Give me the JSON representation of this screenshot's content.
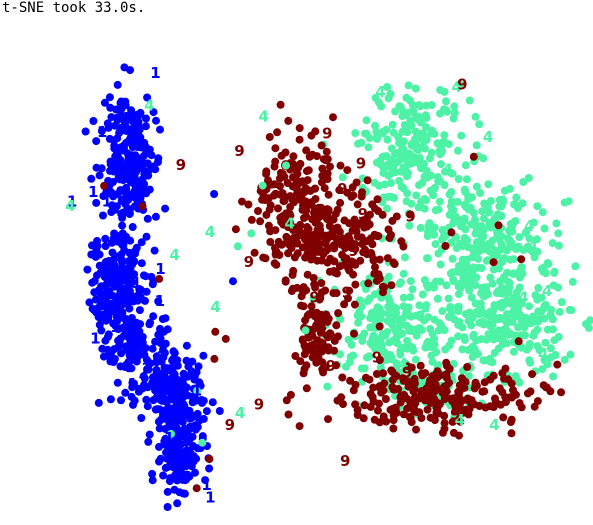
{
  "header": {
    "text": "t-SNE took 33.0s."
  },
  "chart_data": {
    "type": "scatter",
    "title": "",
    "xlabel": "",
    "ylabel": "",
    "grid": false,
    "axes_visible": false,
    "series": [
      {
        "name": "",
        "label_glyph": "1",
        "color": "#0000ff",
        "clusters": [
          {
            "cx": -72,
            "cy": -44,
            "sx": 4.5,
            "sy": 9.5,
            "n": 240
          },
          {
            "cx": -76,
            "cy": -8,
            "sx": 4.5,
            "sy": 8.5,
            "n": 210
          },
          {
            "cx": -70,
            "cy": 11,
            "sx": 5.0,
            "sy": 5.0,
            "n": 120
          },
          {
            "cx": -58,
            "cy": 24,
            "sx": 5.5,
            "sy": 6.0,
            "n": 170
          },
          {
            "cx": -56,
            "cy": 41,
            "sx": 3.5,
            "sy": 6.5,
            "n": 150
          }
        ],
        "text_labels": [
          [
            -63.5,
            -70.1
          ],
          [
            -80.7,
            -52.8
          ],
          [
            -83.6,
            -35.1
          ],
          [
            -79.2,
            -32.3
          ],
          [
            -90.4,
            -32.3
          ],
          [
            -61.9,
            -12.3
          ],
          [
            -69.6,
            -8.2
          ],
          [
            -73.9,
            -13.8
          ],
          [
            -62.1,
            -2.9
          ],
          [
            -78.1,
            1.9
          ],
          [
            -76.4,
            4.7
          ],
          [
            -82.9,
            8.1
          ],
          [
            -72.0,
            9.4
          ],
          [
            -61.6,
            13.6
          ],
          [
            -66.4,
            17.0
          ],
          [
            -67.6,
            20.9
          ],
          [
            -70.9,
            21.6
          ],
          [
            -61.6,
            25.4
          ],
          [
            -50.1,
            23.4
          ],
          [
            -59.1,
            37.4
          ],
          [
            -59.5,
            43.1
          ],
          [
            -47.0,
            51.3
          ],
          [
            -45.8,
            55.0
          ]
        ]
      },
      {
        "name": "",
        "label_glyph": "4",
        "color": "#4df2a6",
        "clusters": [
          {
            "cx": 20,
            "cy": -48,
            "sx": 9,
            "sy": 9,
            "n": 210
          },
          {
            "cx": 40,
            "cy": -22,
            "sx": 11,
            "sy": 9,
            "n": 240
          },
          {
            "cx": 48,
            "cy": 2,
            "sx": 11,
            "sy": 9,
            "n": 260
          },
          {
            "cx": 13,
            "cy": 5,
            "sx": 10,
            "sy": 8,
            "n": 200
          },
          {
            "cx": 25,
            "cy": 24,
            "sx": 6,
            "sy": 4,
            "n": 60
          }
        ],
        "text_labels": [
          [
            -65.5,
            -60.6
          ],
          [
            -91.0,
            -31.0
          ],
          [
            -57.3,
            -16.5
          ],
          [
            -45.9,
            -23.3
          ],
          [
            -44.1,
            -1.2
          ],
          [
            -36.2,
            30.1
          ],
          [
            -28.6,
            -57.3
          ],
          [
            -20.2,
            -25.8
          ],
          [
            9.1,
            -64.6
          ],
          [
            33.7,
            -66.0
          ],
          [
            43.8,
            -51.2
          ],
          [
            30.8,
            -41.7
          ],
          [
            48.3,
            -32.2
          ],
          [
            57.1,
            -25.1
          ],
          [
            58.3,
            -19.0
          ],
          [
            62.9,
            -5.9
          ],
          [
            55.2,
            -3.9
          ],
          [
            49.8,
            6.8
          ],
          [
            61.6,
            12.7
          ],
          [
            16.4,
            15.7
          ],
          [
            45.9,
            33.6
          ],
          [
            34.7,
            32.1
          ],
          [
            12.3,
            2.8
          ]
        ]
      },
      {
        "name": "",
        "label_glyph": "9",
        "color": "#800000",
        "clusters": [
          {
            "cx": -18,
            "cy": -33,
            "sx": 6.5,
            "sy": 10,
            "n": 200
          },
          {
            "cx": -2,
            "cy": -22,
            "sx": 9,
            "sy": 8,
            "n": 190
          },
          {
            "cx": -12,
            "cy": 6,
            "sx": 3.5,
            "sy": 7,
            "n": 90
          },
          {
            "cx": 28,
            "cy": 25,
            "sx": 16,
            "sy": 4.5,
            "n": 230
          }
        ],
        "text_labels": [
          [
            -55.3,
            -43.0
          ],
          [
            -36.4,
            -47.2
          ],
          [
            -8.1,
            -52.3
          ],
          [
            2.8,
            -43.4
          ],
          [
            35.5,
            -66.7
          ],
          [
            -3.2,
            -35.9
          ],
          [
            3.4,
            -28.5
          ],
          [
            18.8,
            -27.9
          ],
          [
            -33.4,
            -14.4
          ],
          [
            0.4,
            -17.7
          ],
          [
            -12.2,
            -3.9
          ],
          [
            -1.8,
            -5.5
          ],
          [
            7.9,
            13.8
          ],
          [
            17.7,
            18.1
          ],
          [
            -30.1,
            27.6
          ],
          [
            -39.5,
            33.6
          ],
          [
            -2.3,
            44.2
          ],
          [
            33.2,
            30.5
          ],
          [
            -24.5,
            -17.0
          ],
          [
            -6.9,
            16.3
          ]
        ]
      }
    ],
    "outlier_points": {
      "blue": [
        [
          -60.4,
          -30.3
        ],
        [
          -44.6,
          -34.6
        ],
        [
          -38.5,
          -8.9
        ],
        [
          -49.4,
          20.9
        ],
        [
          -46.2,
          46.3
        ]
      ],
      "green": [
        [
          -28.9,
          -37.1
        ],
        [
          -36.9,
          -19.2
        ],
        [
          -32.6,
          -23.0
        ],
        [
          -50.1,
          23.4
        ],
        [
          -48.4,
          38.7
        ],
        [
          -21.4,
          -43.0
        ],
        [
          -58.5,
          36.1
        ],
        [
          -15.1,
          5.6
        ]
      ],
      "dark_red": [
        [
          -80.1,
          -37.0
        ],
        [
          -67.7,
          -31.0
        ],
        [
          -62.3,
          -9.6
        ],
        [
          -40.8,
          8.1
        ],
        [
          -44.5,
          14.0
        ],
        [
          -44.2,
          6.0
        ],
        [
          -46.1,
          43.5
        ],
        [
          -50.2,
          52.1
        ],
        [
          -17.0,
          33.8
        ],
        [
          -19.8,
          24.6
        ],
        [
          39.2,
          -45.6
        ],
        [
          32.0,
          -23.3
        ],
        [
          45.6,
          -14.5
        ],
        [
          54.5,
          -15.4
        ],
        [
          53.7,
          8.8
        ],
        [
          51.5,
          25.4
        ],
        [
          47.2,
          -25.4
        ]
      ]
    },
    "xlim": [
      -104,
      68
    ],
    "ylim": [
      -80,
      60
    ]
  }
}
